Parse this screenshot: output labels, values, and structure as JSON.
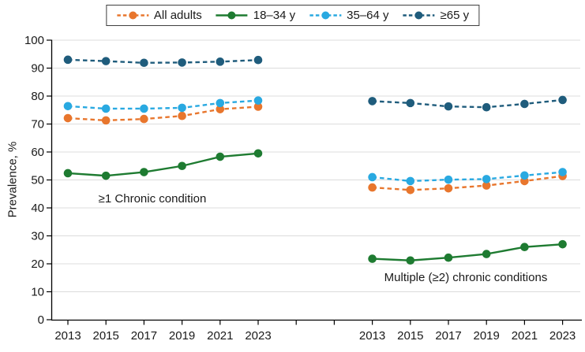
{
  "chart_data": {
    "type": "line",
    "title": "",
    "xlabel": "",
    "ylabel": "Prevalence, %",
    "ylim": [
      0,
      100
    ],
    "y_tick_step": 10,
    "grid": true,
    "legend_position": "top",
    "years": [
      "2013",
      "2015",
      "2017",
      "2019",
      "2021",
      "2023"
    ],
    "legend": [
      {
        "name": "All adults",
        "color": "#E8762D",
        "style": "dashed"
      },
      {
        "name": "18–34 y",
        "color": "#1E7B31",
        "style": "solid"
      },
      {
        "name": "35–64 y",
        "color": "#29A9E1",
        "style": "dashed"
      },
      {
        "name": "≥65 y",
        "color": "#1F5C7C",
        "style": "dashed"
      }
    ],
    "panels": [
      {
        "label": "≥1 Chronic condition",
        "series": [
          {
            "name": "All adults",
            "values": [
              72.1,
              71.3,
              71.8,
              72.9,
              75.3,
              76.2
            ]
          },
          {
            "name": "18–34 y",
            "values": [
              52.4,
              51.5,
              52.8,
              55.0,
              58.3,
              59.5
            ]
          },
          {
            "name": "35–64 y",
            "values": [
              76.4,
              75.5,
              75.5,
              75.8,
              77.5,
              78.4
            ]
          },
          {
            "name": "≥65 y",
            "values": [
              93.0,
              92.5,
              91.9,
              92.0,
              92.3,
              92.9
            ]
          }
        ]
      },
      {
        "label": "Multiple (≥2) chronic conditions",
        "series": [
          {
            "name": "All adults",
            "values": [
              47.3,
              46.4,
              47.0,
              48.0,
              49.6,
              51.4
            ]
          },
          {
            "name": "18–34 y",
            "values": [
              21.8,
              21.2,
              22.2,
              23.5,
              26.0,
              27.0
            ]
          },
          {
            "name": "35–64 y",
            "values": [
              51.0,
              49.6,
              50.1,
              50.3,
              51.6,
              52.8
            ]
          },
          {
            "name": "≥65 y",
            "values": [
              78.2,
              77.5,
              76.3,
              76.0,
              77.2,
              78.6
            ]
          }
        ]
      }
    ],
    "colors": {
      "axis": "#000000",
      "gridline": "#DCDCDC",
      "text": "#1a1a1a"
    }
  }
}
